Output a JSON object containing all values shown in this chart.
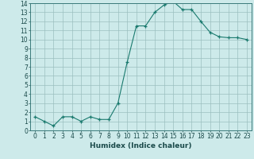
{
  "x": [
    0,
    1,
    2,
    3,
    4,
    5,
    6,
    7,
    8,
    9,
    10,
    11,
    12,
    13,
    14,
    15,
    16,
    17,
    18,
    19,
    20,
    21,
    22,
    23
  ],
  "y": [
    1.5,
    1.0,
    0.5,
    1.5,
    1.5,
    1.0,
    1.5,
    1.2,
    1.2,
    3.0,
    7.5,
    11.5,
    11.5,
    13.0,
    13.8,
    14.2,
    13.3,
    13.3,
    12.0,
    10.8,
    10.3,
    10.2,
    10.2,
    10.0
  ],
  "line_color": "#1a7a6e",
  "marker": "+",
  "bg_color": "#cdeaea",
  "grid_color": "#9bbfbf",
  "xlabel": "Humidex (Indice chaleur)",
  "ylim": [
    0,
    14
  ],
  "xlim": [
    -0.5,
    23.5
  ],
  "yticks": [
    0,
    1,
    2,
    3,
    4,
    5,
    6,
    7,
    8,
    9,
    10,
    11,
    12,
    13,
    14
  ],
  "xticks": [
    0,
    1,
    2,
    3,
    4,
    5,
    6,
    7,
    8,
    9,
    10,
    11,
    12,
    13,
    14,
    15,
    16,
    17,
    18,
    19,
    20,
    21,
    22,
    23
  ],
  "tick_fontsize": 5.5,
  "xlabel_fontsize": 6.5,
  "line_width": 0.8,
  "marker_size": 3.5
}
